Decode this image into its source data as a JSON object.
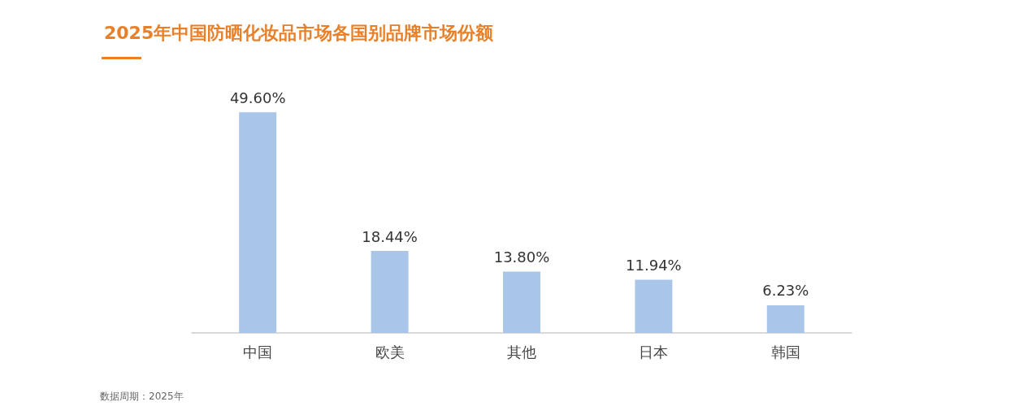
{
  "chart_data": {
    "type": "bar",
    "title": "2025年中国防晒化妆品市场各国别品牌市场份额",
    "categories": [
      "中国",
      "欧美",
      "其他",
      "日本",
      "韩国"
    ],
    "values": [
      49.6,
      18.44,
      13.8,
      11.94,
      6.23
    ],
    "value_labels": [
      "49.60%",
      "18.44%",
      "13.80%",
      "11.94%",
      "6.23%"
    ],
    "color": "#a9c6e8",
    "tick_labels": "x",
    "grid": false,
    "annotations": [
      "数据周期：2025年"
    ]
  }
}
